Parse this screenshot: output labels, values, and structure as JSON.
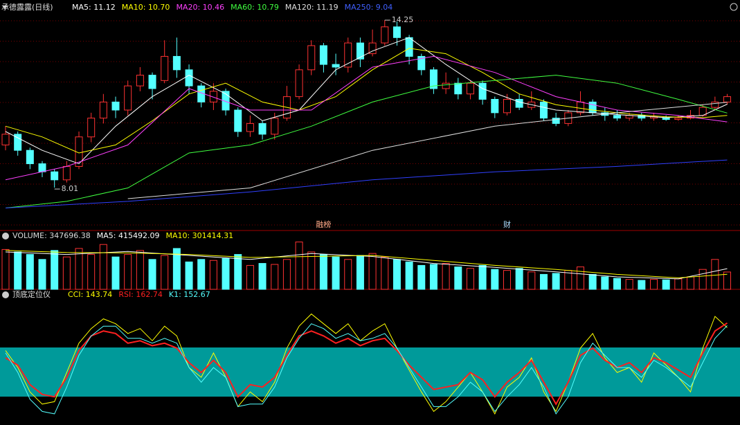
{
  "chart_data": [
    {
      "type": "candlestick",
      "title": "承德露露(日线)",
      "open": [
        9.6,
        10.0,
        9.4,
        8.9,
        8.6,
        8.3,
        8.8,
        9.9,
        10.6,
        11.2,
        10.9,
        11.8,
        12.2,
        12.0,
        12.9,
        12.4,
        11.8,
        11.2,
        11.6,
        10.9,
        10.1,
        10.4,
        10.0,
        10.6,
        11.4,
        12.4,
        13.3,
        12.6,
        12.5,
        13.4,
        13.0,
        13.4,
        14.0,
        13.6,
        12.9,
        12.4,
        11.7,
        11.9,
        11.5,
        11.9,
        11.3,
        10.8,
        11.3,
        11.0,
        11.2,
        10.6,
        10.4,
        10.8,
        11.2,
        10.8,
        10.7,
        10.6,
        10.7,
        10.6,
        10.6,
        10.55,
        10.6,
        10.7,
        11.0,
        11.2
      ],
      "close": [
        10.0,
        9.4,
        8.9,
        8.6,
        8.3,
        8.8,
        9.9,
        10.6,
        11.2,
        10.9,
        11.8,
        12.2,
        11.7,
        12.9,
        12.4,
        11.8,
        11.2,
        11.6,
        10.9,
        10.1,
        10.4,
        10.0,
        10.6,
        11.4,
        12.4,
        13.3,
        12.6,
        12.5,
        13.4,
        12.8,
        13.4,
        14.0,
        13.6,
        12.9,
        12.4,
        11.7,
        11.9,
        11.5,
        11.9,
        11.3,
        10.8,
        11.3,
        11.0,
        11.2,
        10.6,
        10.4,
        10.8,
        11.2,
        10.8,
        10.7,
        10.6,
        10.7,
        10.6,
        10.65,
        10.55,
        10.6,
        10.7,
        11.0,
        11.2,
        11.4
      ],
      "high": [
        10.3,
        10.1,
        9.5,
        9.0,
        8.7,
        9.0,
        10.1,
        10.8,
        11.5,
        11.4,
        12.0,
        12.5,
        12.3,
        13.5,
        13.6,
        12.6,
        11.9,
        11.9,
        11.7,
        11.0,
        10.7,
        10.5,
        10.8,
        11.8,
        12.6,
        13.5,
        13.4,
        13.0,
        13.6,
        13.6,
        13.9,
        14.25,
        14.2,
        13.7,
        13.0,
        12.5,
        12.3,
        12.1,
        12.0,
        12.0,
        11.4,
        11.5,
        11.5,
        11.6,
        11.3,
        10.8,
        10.9,
        11.6,
        11.3,
        11.0,
        10.9,
        10.8,
        10.8,
        10.8,
        10.7,
        10.7,
        10.9,
        11.1,
        11.4,
        11.5
      ],
      "low": [
        9.4,
        9.2,
        8.7,
        8.4,
        8.01,
        8.2,
        8.7,
        9.7,
        10.4,
        10.6,
        10.7,
        11.6,
        11.3,
        11.9,
        12.1,
        11.5,
        11.0,
        10.9,
        10.7,
        9.9,
        9.9,
        9.8,
        9.8,
        10.5,
        11.3,
        12.2,
        12.3,
        12.2,
        12.3,
        12.5,
        12.9,
        13.3,
        13.3,
        12.6,
        12.2,
        11.5,
        11.5,
        11.3,
        11.3,
        11.1,
        10.6,
        10.7,
        10.9,
        10.9,
        10.5,
        10.3,
        10.3,
        10.7,
        10.7,
        10.5,
        10.5,
        10.5,
        10.5,
        10.5,
        10.5,
        10.5,
        10.55,
        10.65,
        10.9,
        11.1
      ],
      "up_color": "#ff3232",
      "down_color": "#54ffff",
      "ylim": [
        6.8,
        15.0
      ],
      "series": [
        {
          "label": "MA5: 11.12",
          "color": "#ffffff",
          "x": [
            0,
            3,
            6,
            9,
            12,
            15,
            18,
            21,
            24,
            27,
            30,
            33,
            36,
            39,
            42,
            45,
            48,
            51,
            54,
            57,
            59
          ],
          "values": [
            10.1,
            9.4,
            8.9,
            10.3,
            11.4,
            12.2,
            11.5,
            10.5,
            10.9,
            12.4,
            13.1,
            13.6,
            12.6,
            11.7,
            11.2,
            10.9,
            10.8,
            10.7,
            10.62,
            10.7,
            11.12
          ]
        },
        {
          "label": "MA10: 10.70",
          "color": "#ffff00",
          "x": [
            0,
            3,
            6,
            9,
            12,
            15,
            18,
            21,
            24,
            27,
            30,
            33,
            36,
            39,
            42,
            45,
            48,
            51,
            54,
            57,
            59
          ],
          "values": [
            10.3,
            9.9,
            9.3,
            9.6,
            10.5,
            11.5,
            11.9,
            11.2,
            10.9,
            11.4,
            12.4,
            13.2,
            13.0,
            12.3,
            11.5,
            11.1,
            10.9,
            10.75,
            10.65,
            10.62,
            10.7
          ]
        },
        {
          "label": "MA20: 10.46",
          "color": "#ff40ff",
          "x": [
            0,
            5,
            10,
            15,
            20,
            25,
            30,
            35,
            40,
            45,
            50,
            55,
            59
          ],
          "values": [
            8.3,
            8.8,
            9.6,
            11.7,
            10.9,
            10.9,
            12.5,
            12.9,
            12.3,
            11.4,
            10.9,
            10.7,
            10.46
          ]
        },
        {
          "label": "MA60: 10.79",
          "color": "#40ff40",
          "x": [
            0,
            5,
            10,
            15,
            20,
            25,
            30,
            35,
            40,
            45,
            50,
            55,
            59
          ],
          "values": [
            7.25,
            7.5,
            8.0,
            9.3,
            9.6,
            10.3,
            11.2,
            11.8,
            12.0,
            12.2,
            11.9,
            11.3,
            10.79
          ]
        },
        {
          "label": "MA120: 11.19",
          "color": "#e0e0e0",
          "x": [
            10,
            20,
            30,
            40,
            50,
            59
          ],
          "values": [
            7.6,
            8.0,
            9.4,
            10.3,
            10.8,
            11.19
          ]
        },
        {
          "label": "MA250: 9.04",
          "color": "#3040ff",
          "x": [
            0,
            10,
            20,
            30,
            40,
            50,
            59
          ],
          "values": [
            7.25,
            7.5,
            7.85,
            8.3,
            8.6,
            8.8,
            9.04
          ]
        }
      ],
      "annotations": [
        {
          "label": "14.25",
          "value": 14.25
        },
        {
          "label": "8.01",
          "value": 8.01
        }
      ],
      "events": [
        {
          "label": "融榜",
          "index": 26
        },
        {
          "label": "财",
          "index": 41
        }
      ]
    },
    {
      "type": "bar",
      "label": "VOLUME: 347696.38",
      "values": [
        800000,
        750000,
        700000,
        600000,
        780000,
        650000,
        820000,
        700000,
        900000,
        650000,
        700000,
        780000,
        600000,
        680000,
        820000,
        550000,
        600000,
        580000,
        620000,
        700000,
        480000,
        520000,
        500000,
        600000,
        950000,
        750000,
        700000,
        650000,
        600000,
        680000,
        720000,
        650000,
        600000,
        550000,
        480000,
        500000,
        520000,
        450000,
        420000,
        480000,
        400000,
        380000,
        420000,
        350000,
        300000,
        320000,
        380000,
        450000,
        300000,
        250000,
        220000,
        200000,
        180000,
        200000,
        190000,
        210000,
        250000,
        400000,
        600000,
        347696.38
      ],
      "ylim": [
        0,
        1000000
      ],
      "series": [
        {
          "label": "MA5: 415492.09",
          "color": "#ffffff",
          "x": [
            0,
            5,
            10,
            15,
            20,
            25,
            30,
            35,
            40,
            45,
            50,
            55,
            59
          ],
          "values": [
            750000,
            700000,
            760000,
            680000,
            600000,
            720000,
            660000,
            520000,
            440000,
            350000,
            250000,
            210000,
            415492.09
          ]
        },
        {
          "label": "MA10: 301414.31",
          "color": "#ffff00",
          "x": [
            0,
            5,
            10,
            15,
            20,
            25,
            30,
            35,
            40,
            45,
            50,
            55,
            59
          ],
          "values": [
            780000,
            740000,
            730000,
            700000,
            640000,
            660000,
            680000,
            580000,
            480000,
            400000,
            300000,
            230000,
            301414.31
          ]
        }
      ]
    },
    {
      "type": "line",
      "title": "顶底定位仪",
      "ylim": [
        -250,
        250
      ],
      "series": [
        {
          "label": "CCI: 143.74",
          "color": "#ffff00",
          "values": [
            50,
            -20,
            -120,
            -170,
            -160,
            -40,
            80,
            140,
            180,
            160,
            120,
            140,
            90,
            150,
            110,
            -20,
            -60,
            40,
            -60,
            -180,
            -120,
            -160,
            -80,
            60,
            150,
            200,
            160,
            120,
            160,
            90,
            130,
            160,
            60,
            -30,
            -120,
            -200,
            -160,
            -100,
            -40,
            -120,
            -210,
            -100,
            -60,
            20,
            -120,
            -200,
            -80,
            60,
            120,
            20,
            -40,
            -20,
            -80,
            40,
            -10,
            -60,
            -120,
            60,
            190,
            143.74
          ]
        },
        {
          "label": "RSI: 162.74",
          "color": "#ff2020",
          "values": [
            20,
            -10,
            -90,
            -130,
            -140,
            -60,
            50,
            110,
            130,
            120,
            80,
            90,
            70,
            80,
            60,
            0,
            -40,
            10,
            -40,
            -140,
            -90,
            -100,
            -60,
            30,
            110,
            130,
            110,
            80,
            100,
            70,
            90,
            100,
            50,
            -10,
            -60,
            -110,
            -100,
            -90,
            -40,
            -70,
            -140,
            -80,
            -40,
            10,
            -80,
            -170,
            -80,
            30,
            60,
            10,
            -20,
            0,
            -40,
            20,
            0,
            -30,
            -60,
            40,
            130,
            162.74
          ]
        },
        {
          "label": "K1: 152.67",
          "color": "#54ffff",
          "values": [
            40,
            -40,
            -150,
            -200,
            -210,
            -100,
            30,
            110,
            150,
            150,
            100,
            100,
            80,
            100,
            80,
            -20,
            -80,
            -20,
            -60,
            -180,
            -170,
            -170,
            -100,
            20,
            100,
            160,
            140,
            100,
            120,
            90,
            100,
            120,
            60,
            -20,
            -100,
            -180,
            -180,
            -140,
            -80,
            -120,
            -200,
            -140,
            -90,
            -20,
            -100,
            -210,
            -140,
            0,
            80,
            30,
            -20,
            -20,
            -60,
            10,
            -20,
            -60,
            -100,
            0,
            100,
            152.67
          ]
        }
      ]
    }
  ]
}
